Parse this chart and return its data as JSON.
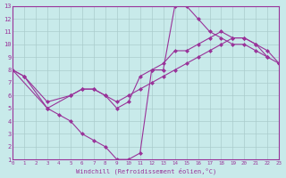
{
  "background_color": "#c8eaea",
  "line_color": "#993399",
  "grid_color": "#aacccc",
  "xlabel": "Windchill (Refroidissement éolien,°C)",
  "xlim": [
    0,
    23
  ],
  "ylim": [
    1,
    13
  ],
  "xticks": [
    0,
    1,
    2,
    3,
    4,
    5,
    6,
    7,
    8,
    9,
    10,
    11,
    12,
    13,
    14,
    15,
    16,
    17,
    18,
    19,
    20,
    21,
    22,
    23
  ],
  "yticks": [
    1,
    2,
    3,
    4,
    5,
    6,
    7,
    8,
    9,
    10,
    11,
    12,
    13
  ],
  "line1_x": [
    0,
    1,
    3,
    4,
    5,
    6,
    7,
    8,
    9,
    10,
    11,
    12,
    13,
    14,
    15,
    16,
    17,
    18,
    19,
    20,
    21,
    22
  ],
  "line1_y": [
    8,
    7.5,
    5,
    4.5,
    4,
    3,
    2.5,
    2,
    1,
    1,
    1.5,
    8,
    8,
    13,
    13,
    12,
    11,
    10.5,
    10,
    10,
    9.5,
    9
  ],
  "line2_x": [
    0,
    3,
    5,
    6,
    7,
    8,
    9,
    10,
    11,
    12,
    13,
    14,
    15,
    16,
    17,
    18,
    19,
    20,
    21,
    22,
    23
  ],
  "line2_y": [
    8,
    5,
    6,
    6.5,
    6.5,
    6,
    5,
    5.5,
    7.5,
    8,
    8.5,
    9.5,
    9.5,
    10,
    10.5,
    11,
    10.5,
    10.5,
    10,
    9.5,
    8.5
  ],
  "line3_x": [
    0,
    1,
    3,
    5,
    6,
    7,
    8,
    9,
    10,
    11,
    12,
    13,
    14,
    15,
    16,
    17,
    18,
    19,
    20,
    21,
    22,
    23
  ],
  "line3_y": [
    8,
    7.5,
    5.5,
    6,
    6.5,
    6.5,
    6,
    5.5,
    6,
    6.5,
    7,
    7.5,
    8,
    8.5,
    9,
    9.5,
    10,
    10.5,
    10.5,
    10,
    9,
    8.5
  ]
}
